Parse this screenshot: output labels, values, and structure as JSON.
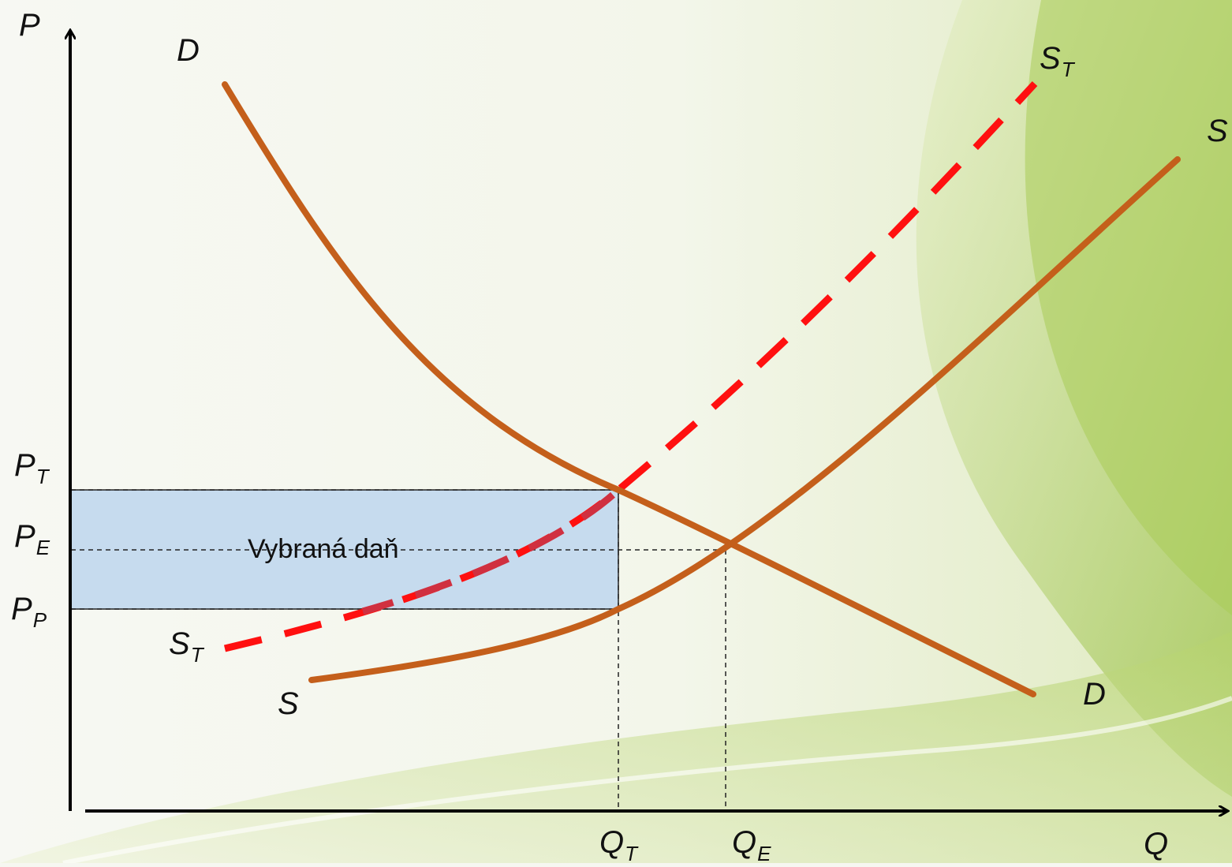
{
  "colors": {
    "curve": "#c45f1b",
    "taxed_supply": "#ff1010",
    "taxed_supply_inside_box": "#d03040",
    "tax_box_fill": "#c6dbee",
    "axis": "#000000",
    "background_green": "#8fbf3a"
  },
  "axes": {
    "y_label": "P",
    "x_label": "Q"
  },
  "price_labels": {
    "pt_main": "P",
    "pt_sub": "T",
    "pe_main": "P",
    "pe_sub": "E",
    "pp_main": "P",
    "pp_sub": "P"
  },
  "quantity_labels": {
    "qt_main": "Q",
    "qt_sub": "T",
    "qe_main": "Q",
    "qe_sub": "E"
  },
  "curve_labels": {
    "demand_top": "D",
    "demand_bottom": "D",
    "supply_bottom": "S",
    "supply_top": "S",
    "taxed_top_main": "S",
    "taxed_top_sub": "T",
    "taxed_bottom_main": "S",
    "taxed_bottom_sub": "T"
  },
  "tax_box": {
    "label": "Vybraná daň"
  }
}
